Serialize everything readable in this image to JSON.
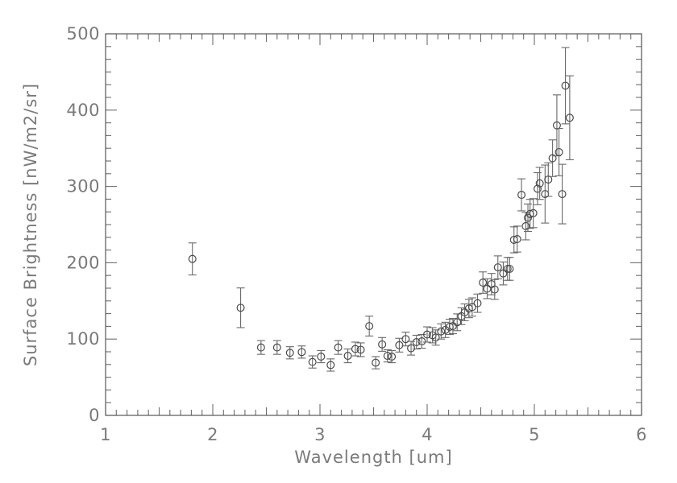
{
  "figure": {
    "background": "#ffffff",
    "frame_color": "#585858",
    "tick_color": "#6e6e6e",
    "text_color": "#7a7a7a",
    "marker_color": "#4a4a4a",
    "errorbar_color": "#696969"
  },
  "chart_data": {
    "type": "scatter",
    "title": "",
    "xlabel": "Wavelength [um]",
    "ylabel": "Surface Brightness [nW/m2/sr]",
    "xlim": [
      1,
      6
    ],
    "ylim": [
      0,
      500
    ],
    "grid": false,
    "legend": null,
    "marker": "open-circle",
    "error_bars": "vertical-with-caps",
    "x_tick_values": [
      1,
      2,
      3,
      4,
      5,
      6
    ],
    "x_tick_labels": [
      "1",
      "2",
      "3",
      "4",
      "5",
      "6"
    ],
    "x_minor_tick_step": 0.1,
    "y_tick_values": [
      0,
      100,
      200,
      300,
      400,
      500
    ],
    "y_tick_labels": [
      "0",
      "100",
      "200",
      "300",
      "400",
      "500"
    ],
    "y_minor_divisions_per_major": 6,
    "series": [
      {
        "name": "surface-brightness",
        "x": [
          1.81,
          2.26,
          2.45,
          2.6,
          2.72,
          2.83,
          2.93,
          3.01,
          3.1,
          3.17,
          3.26,
          3.33,
          3.38,
          3.46,
          3.52,
          3.58,
          3.63,
          3.67,
          3.74,
          3.8,
          3.85,
          3.9,
          3.95,
          4.0,
          4.05,
          4.08,
          4.13,
          4.17,
          4.21,
          4.24,
          4.28,
          4.32,
          4.35,
          4.39,
          4.42,
          4.47,
          4.52,
          4.56,
          4.6,
          4.63,
          4.66,
          4.71,
          4.75,
          4.77,
          4.81,
          4.84,
          4.88,
          4.92,
          4.94,
          4.96,
          4.99,
          5.03,
          5.05,
          5.1,
          5.13,
          5.17,
          5.21,
          5.23,
          5.26,
          5.29,
          5.33
        ],
        "y": [
          205,
          141,
          89,
          89,
          82,
          83,
          70,
          77,
          66,
          89,
          78,
          87,
          86,
          117,
          69,
          93,
          78,
          77,
          92,
          100,
          88,
          96,
          97,
          106,
          105,
          102,
          110,
          112,
          116,
          117,
          122,
          130,
          135,
          140,
          142,
          147,
          174,
          166,
          172,
          165,
          194,
          186,
          192,
          192,
          230,
          231,
          289,
          248,
          259,
          264,
          265,
          297,
          304,
          290,
          309,
          337,
          380,
          345,
          290,
          432,
          390
        ],
        "yerr": [
          21,
          26,
          9,
          9,
          8,
          8,
          8,
          8,
          8,
          9,
          9,
          9,
          9,
          13,
          8,
          9,
          8,
          8,
          9,
          9,
          9,
          9,
          9,
          10,
          10,
          10,
          10,
          10,
          10,
          10,
          11,
          11,
          11,
          12,
          12,
          12,
          14,
          13,
          14,
          13,
          15,
          15,
          15,
          15,
          17,
          17,
          21,
          18,
          18,
          19,
          19,
          21,
          21,
          38,
          22,
          24,
          40,
          31,
          39,
          50,
          55
        ]
      }
    ]
  }
}
